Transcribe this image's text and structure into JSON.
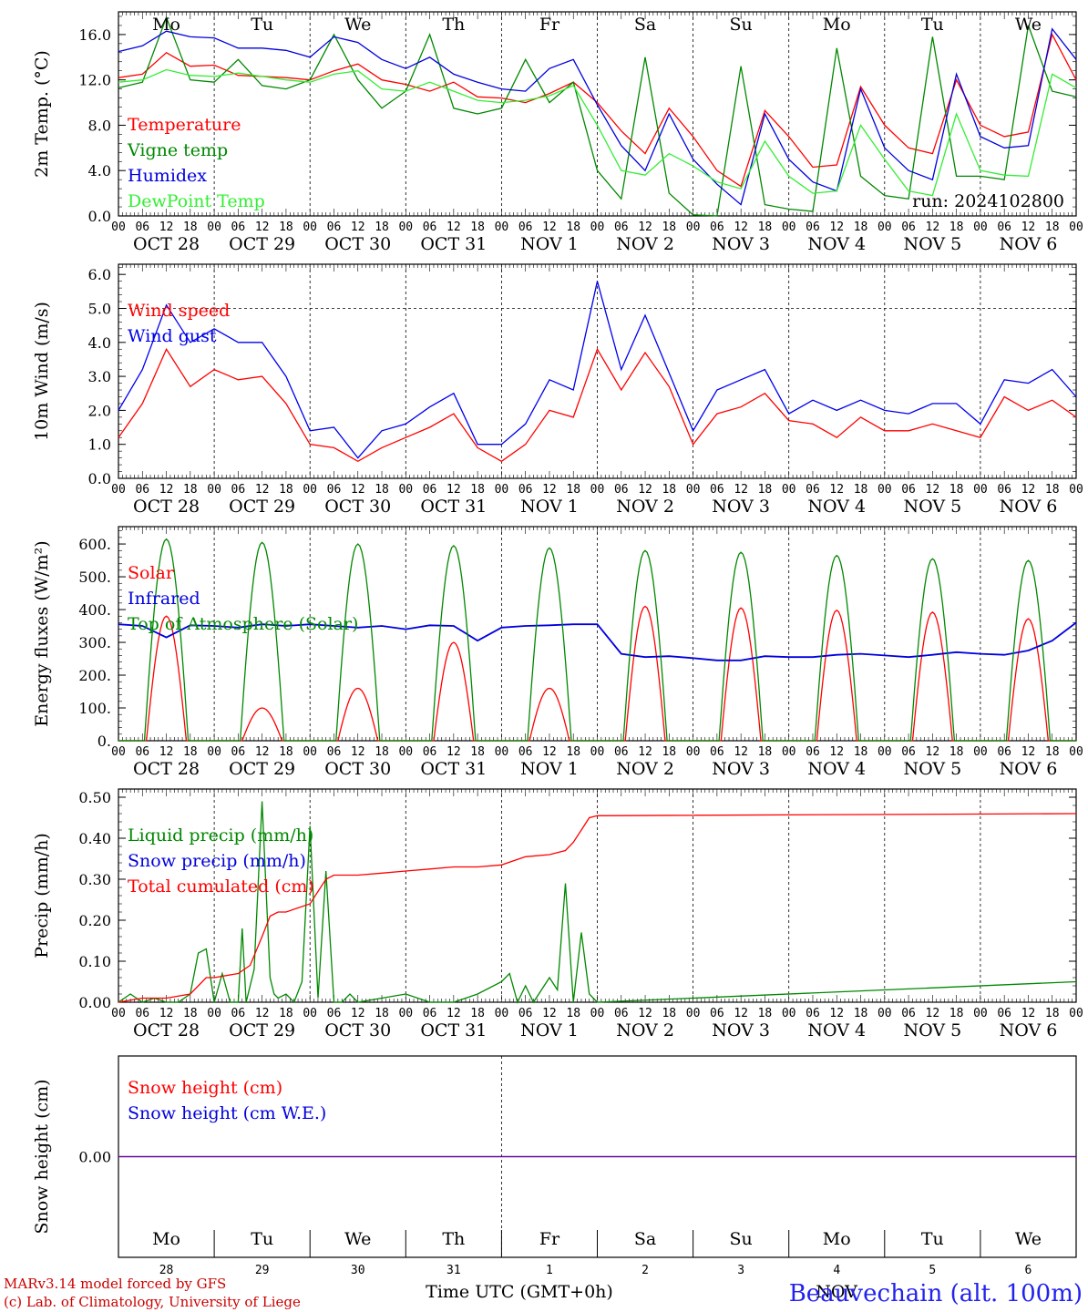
{
  "chart_data": [
    {
      "type": "line",
      "ylabel": "2m Temp. (°C)",
      "ylim": [
        0,
        18
      ],
      "yticks": [
        "0.0",
        "4.0",
        "8.0",
        "12.0",
        "16.0"
      ],
      "annotation": "run: 2024102800",
      "series": [
        {
          "name": "Temperature",
          "color": "#ff0000",
          "x": [
            0,
            6,
            12,
            18,
            24,
            30,
            36,
            42,
            48,
            54,
            60,
            66,
            72,
            78,
            84,
            90,
            96,
            102,
            108,
            114,
            120,
            126,
            132,
            138,
            144,
            150,
            156,
            162,
            168,
            174,
            180,
            186,
            192,
            198,
            204,
            210,
            216,
            222,
            228,
            234,
            240
          ],
          "values": [
            12.2,
            12.5,
            14.4,
            13.2,
            13.3,
            12.4,
            12.3,
            12.2,
            12.0,
            12.8,
            13.4,
            12.0,
            11.6,
            11.0,
            11.8,
            10.5,
            10.4,
            10.0,
            10.8,
            11.8,
            10.0,
            7.5,
            5.5,
            9.5,
            7.0,
            4.0,
            2.6,
            9.3,
            7.0,
            4.3,
            4.5,
            11.4,
            8.0,
            6.0,
            5.5,
            12.0,
            8.0,
            7.0,
            7.4,
            16.0,
            12.0
          ]
        },
        {
          "name": "Vigne temp",
          "color": "#008800",
          "x": [
            0,
            6,
            12,
            18,
            24,
            30,
            36,
            42,
            48,
            54,
            60,
            66,
            72,
            78,
            84,
            90,
            96,
            102,
            108,
            114,
            120,
            126,
            132,
            138,
            144,
            150,
            156,
            162,
            168,
            174,
            180,
            186,
            192,
            198,
            204,
            210,
            216,
            222,
            228,
            234,
            240
          ],
          "values": [
            11.3,
            11.8,
            17.5,
            12.0,
            11.8,
            13.8,
            11.5,
            11.2,
            12.0,
            16.0,
            12.0,
            9.5,
            11.0,
            16.0,
            9.5,
            9.0,
            9.5,
            13.8,
            10.0,
            11.8,
            4.0,
            1.5,
            14.0,
            2.0,
            0.1,
            0.0,
            13.2,
            1.0,
            0.6,
            0.4,
            14.8,
            3.5,
            1.8,
            1.5,
            15.8,
            3.5,
            3.5,
            3.2,
            16.8,
            11.0,
            10.5
          ]
        },
        {
          "name": "Humidex",
          "color": "#0000dd",
          "x": [
            0,
            6,
            12,
            18,
            24,
            30,
            36,
            42,
            48,
            54,
            60,
            66,
            72,
            78,
            84,
            90,
            96,
            102,
            108,
            114,
            120,
            126,
            132,
            138,
            144,
            150,
            156,
            162,
            168,
            174,
            180,
            186,
            192,
            198,
            204,
            210,
            216,
            222,
            228,
            234,
            240
          ],
          "values": [
            14.5,
            15.0,
            16.3,
            15.8,
            15.7,
            14.8,
            14.8,
            14.6,
            14.0,
            15.8,
            15.3,
            13.8,
            13.0,
            14.0,
            12.5,
            11.8,
            11.2,
            11.0,
            13.0,
            13.8,
            9.8,
            6.2,
            4.0,
            9.0,
            5.0,
            2.8,
            1.0,
            9.0,
            5.0,
            3.0,
            2.2,
            11.2,
            6.0,
            4.0,
            3.2,
            12.5,
            7.0,
            6.0,
            6.2,
            16.5,
            13.8
          ]
        },
        {
          "name": "DewPoint Temp",
          "color": "#33ee33",
          "x": [
            0,
            6,
            12,
            18,
            24,
            30,
            36,
            42,
            48,
            54,
            60,
            66,
            72,
            78,
            84,
            90,
            96,
            102,
            108,
            114,
            120,
            126,
            132,
            138,
            144,
            150,
            156,
            162,
            168,
            174,
            180,
            186,
            192,
            198,
            204,
            210,
            216,
            222,
            228,
            234,
            240
          ],
          "values": [
            11.8,
            12.0,
            12.9,
            12.4,
            12.3,
            12.6,
            12.3,
            12.0,
            11.8,
            12.5,
            12.8,
            11.2,
            11.0,
            11.8,
            11.0,
            10.2,
            10.0,
            10.2,
            10.6,
            11.5,
            8.0,
            4.0,
            3.6,
            5.5,
            4.4,
            3.0,
            2.4,
            6.6,
            3.5,
            2.0,
            2.2,
            8.0,
            5.0,
            2.2,
            1.8,
            9.0,
            4.0,
            3.6,
            3.5,
            12.5,
            11.3
          ]
        }
      ]
    },
    {
      "type": "line",
      "ylabel": "10m Wind (m/s)",
      "ylim": [
        0,
        6
      ],
      "yticks": [
        "0.0",
        "1.0",
        "2.0",
        "3.0",
        "4.0",
        "5.0",
        "6.0"
      ],
      "series": [
        {
          "name": "Wind speed",
          "color": "#ff0000",
          "x": [
            0,
            6,
            12,
            18,
            24,
            30,
            36,
            42,
            48,
            54,
            60,
            66,
            72,
            78,
            84,
            90,
            96,
            102,
            108,
            114,
            120,
            126,
            132,
            138,
            144,
            150,
            156,
            162,
            168,
            174,
            180,
            186,
            192,
            198,
            204,
            210,
            216,
            222,
            228,
            234,
            240
          ],
          "values": [
            1.2,
            2.2,
            3.8,
            2.7,
            3.2,
            2.9,
            3.0,
            2.2,
            1.0,
            0.9,
            0.5,
            0.9,
            1.2,
            1.5,
            1.9,
            0.9,
            0.5,
            1.0,
            2.0,
            1.8,
            3.8,
            2.6,
            3.7,
            2.7,
            1.0,
            1.9,
            2.1,
            2.5,
            1.7,
            1.6,
            1.2,
            1.8,
            1.4,
            1.4,
            1.6,
            1.4,
            1.2,
            2.4,
            2.0,
            2.3,
            1.8
          ]
        },
        {
          "name": "Wind gust",
          "color": "#0000ee",
          "x": [
            0,
            6,
            12,
            18,
            24,
            30,
            36,
            42,
            48,
            54,
            60,
            66,
            72,
            78,
            84,
            90,
            96,
            102,
            108,
            114,
            120,
            126,
            132,
            138,
            144,
            150,
            156,
            162,
            168,
            174,
            180,
            186,
            192,
            198,
            204,
            210,
            216,
            222,
            228,
            234,
            240
          ],
          "values": [
            2.0,
            3.2,
            5.1,
            4.0,
            4.4,
            4.0,
            4.0,
            3.0,
            1.4,
            1.5,
            0.6,
            1.4,
            1.6,
            2.1,
            2.5,
            1.0,
            1.0,
            1.6,
            2.9,
            2.6,
            5.8,
            3.2,
            4.8,
            3.1,
            1.4,
            2.6,
            2.9,
            3.2,
            1.9,
            2.3,
            2.0,
            2.3,
            2.0,
            1.9,
            2.2,
            2.2,
            1.6,
            2.9,
            2.8,
            3.2,
            2.4
          ]
        }
      ]
    },
    {
      "type": "line",
      "ylabel": "Energy fluxes (W/m²)",
      "ylim": [
        0,
        650
      ],
      "yticks": [
        "0.",
        "100.",
        "200.",
        "300.",
        "400.",
        "500.",
        "600."
      ],
      "series": [
        {
          "name": "Solar",
          "color": "#ff0000",
          "daily_peaks": [
            380,
            100,
            160,
            300,
            160,
            410,
            405,
            398,
            392,
            372
          ]
        },
        {
          "name": "Infrared",
          "color": "#0000dd",
          "x": [
            0,
            6,
            12,
            18,
            24,
            30,
            36,
            42,
            48,
            54,
            60,
            66,
            72,
            78,
            84,
            90,
            96,
            102,
            108,
            114,
            120,
            126,
            132,
            138,
            144,
            150,
            156,
            162,
            168,
            174,
            180,
            186,
            192,
            198,
            204,
            210,
            216,
            222,
            228,
            234,
            240
          ],
          "values": [
            355,
            350,
            315,
            352,
            350,
            345,
            355,
            350,
            355,
            350,
            345,
            350,
            340,
            352,
            350,
            305,
            345,
            350,
            352,
            355,
            355,
            265,
            255,
            258,
            252,
            245,
            245,
            258,
            255,
            255,
            262,
            265,
            260,
            255,
            262,
            270,
            265,
            262,
            275,
            305,
            360
          ]
        },
        {
          "name": "Top of Atmosphere (Solar)",
          "color": "#008800",
          "daily_peaks": [
            615,
            605,
            600,
            595,
            588,
            580,
            575,
            565,
            555,
            550
          ]
        }
      ]
    },
    {
      "type": "line",
      "ylabel": "Precip (mm/h)",
      "ylim": [
        0,
        0.5
      ],
      "yticks": [
        "0.00",
        "0.10",
        "0.20",
        "0.30",
        "0.40",
        "0.50"
      ],
      "series": [
        {
          "name": "Liquid precip (mm/h)",
          "color": "#008800",
          "x": [
            0,
            3,
            6,
            9,
            12,
            15,
            18,
            20,
            22,
            24,
            26,
            28,
            30,
            31,
            32,
            34,
            36,
            38,
            39,
            40,
            42,
            44,
            46,
            48,
            50,
            52,
            54,
            56,
            58,
            60,
            66,
            72,
            78,
            84,
            90,
            96,
            98,
            100,
            102,
            104,
            106,
            108,
            110,
            112,
            114,
            116,
            118,
            120,
            240
          ],
          "values": [
            0,
            0.02,
            0,
            0.01,
            0,
            0,
            0.02,
            0.12,
            0.13,
            0,
            0.07,
            0,
            0,
            0.18,
            0,
            0.08,
            0.49,
            0.06,
            0.02,
            0.01,
            0.02,
            0.0,
            0.05,
            0.43,
            0.01,
            0.32,
            0,
            0,
            0.02,
            0,
            0.01,
            0.02,
            0,
            0,
            0.02,
            0.05,
            0.07,
            0,
            0.04,
            0.0,
            0.03,
            0.06,
            0.03,
            0.29,
            0,
            0.17,
            0.02,
            0,
            0.05
          ]
        },
        {
          "name": "Snow precip (mm/h)",
          "color": "#0000dd",
          "values": []
        },
        {
          "name": "Total cumulated (cm)",
          "color": "#ff0000",
          "x": [
            0,
            6,
            12,
            18,
            20,
            22,
            24,
            30,
            33,
            36,
            38,
            40,
            42,
            48,
            52,
            54,
            60,
            66,
            72,
            78,
            84,
            90,
            96,
            102,
            108,
            112,
            114,
            116,
            118,
            120,
            240
          ],
          "values": [
            0.0,
            0.01,
            0.01,
            0.02,
            0.04,
            0.06,
            0.06,
            0.07,
            0.09,
            0.16,
            0.21,
            0.22,
            0.22,
            0.24,
            0.3,
            0.31,
            0.31,
            0.315,
            0.32,
            0.325,
            0.33,
            0.33,
            0.335,
            0.355,
            0.36,
            0.37,
            0.39,
            0.42,
            0.45,
            0.455,
            0.46
          ]
        }
      ]
    },
    {
      "type": "line",
      "ylabel": "Snow height (cm)",
      "yticks": [
        "0.00"
      ],
      "series": [
        {
          "name": "Snow height (cm)",
          "color": "#ff0000",
          "values": [
            0,
            0
          ]
        },
        {
          "name": "Snow height (cm W.E.)",
          "color": "#0000dd",
          "values": [
            0,
            0
          ]
        }
      ]
    }
  ],
  "days": [
    {
      "abbr": "Mo",
      "num": "28",
      "date_label": "OCT 28",
      "weekend": false
    },
    {
      "abbr": "Tu",
      "num": "29",
      "date_label": "OCT 29",
      "weekend": false
    },
    {
      "abbr": "We",
      "num": "30",
      "date_label": "OCT 30",
      "weekend": false
    },
    {
      "abbr": "Th",
      "num": "31",
      "date_label": "OCT 31",
      "weekend": false
    },
    {
      "abbr": "Fr",
      "num": "1",
      "date_label": "NOV  1",
      "weekend": false
    },
    {
      "abbr": "Sa",
      "num": "2",
      "date_label": "NOV  2",
      "weekend": true
    },
    {
      "abbr": "Su",
      "num": "3",
      "date_label": "NOV  3",
      "weekend": true
    },
    {
      "abbr": "Mo",
      "num": "4",
      "date_label": "NOV  4",
      "weekend": false
    },
    {
      "abbr": "Tu",
      "num": "5",
      "date_label": "NOV  5",
      "weekend": false
    },
    {
      "abbr": "We",
      "num": "6",
      "date_label": "NOV  6",
      "weekend": false
    }
  ],
  "hour_ticks": [
    "00",
    "06",
    "12",
    "18"
  ],
  "final_hour_tick": "00",
  "month_label": "NOV",
  "xlabel": "Time UTC (GMT+0h)",
  "footer": {
    "credit_line1": "MARv3.14 model forced by GFS",
    "credit_line2": "(c) Lab. of Climatology, University of Liege",
    "location": "Beauvechain (alt. 100m)"
  },
  "colors": {
    "weekend": "#ff0000",
    "weekday": "#000000"
  }
}
